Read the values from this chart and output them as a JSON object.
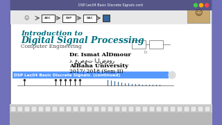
{
  "bg_outer": "#6666aa",
  "bg_slide": "#f5f5f0",
  "bg_taskbar": "#c8c8c8",
  "title_line1": "Introduction to",
  "title_line2": "Digital Signal Processing",
  "subtitle": "Computer Engineering",
  "author": "Dr. Ismat AlDmour",
  "author_arabic": "د. عصمت الضمور",
  "university": "AlBaha University",
  "year": "2017/ 2018 (Sem II)",
  "banner_text": "DSP Lec04 Basic Discrete Signals. (continued)",
  "banner_bg": "#5599ff",
  "banner_text_color": "#ffffff",
  "slide_bg": "#ffffff",
  "title_color": "#007080",
  "subtitle_color": "#444444",
  "author_color": "#000000"
}
